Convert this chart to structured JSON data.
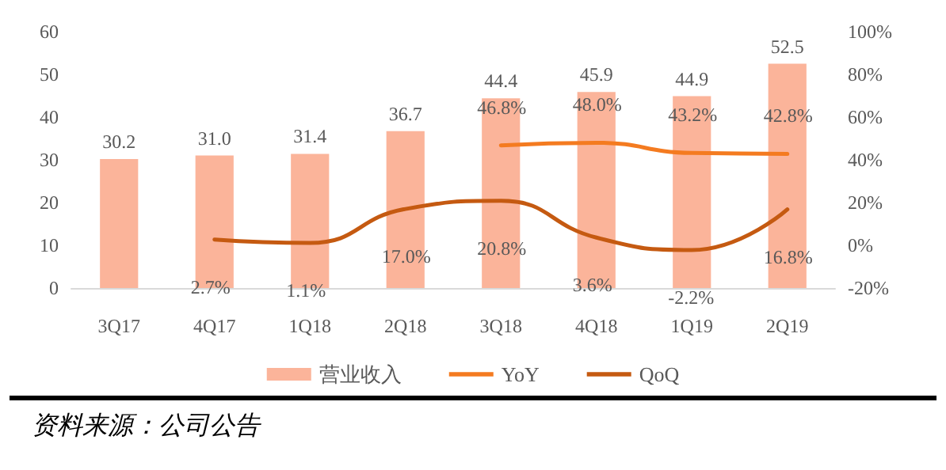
{
  "chart_data": {
    "type": "bar",
    "categories": [
      "3Q17",
      "4Q17",
      "1Q18",
      "2Q18",
      "3Q18",
      "4Q18",
      "1Q19",
      "2Q19"
    ],
    "series": [
      {
        "name": "营业收入",
        "color": "#fbb49a",
        "values": [
          30.2,
          31.0,
          31.4,
          36.7,
          44.4,
          45.9,
          44.9,
          52.5
        ],
        "value_labels": [
          "30.2",
          "31.0",
          "31.4",
          "36.7",
          "44.4",
          "45.9",
          "44.9",
          "52.5"
        ]
      },
      {
        "name": "YoY",
        "type": "line",
        "axis": "y2",
        "color": "#f47b20",
        "values": [
          null,
          null,
          null,
          null,
          46.8,
          48.0,
          43.2,
          42.8
        ],
        "value_labels": [
          null,
          null,
          null,
          null,
          "46.8%",
          "48.0%",
          "43.2%",
          "42.8%"
        ]
      },
      {
        "name": "QoQ",
        "type": "line",
        "axis": "y2",
        "color": "#c55a11",
        "values": [
          null,
          2.7,
          1.1,
          17.0,
          20.8,
          3.6,
          -2.2,
          16.8
        ],
        "value_labels": [
          null,
          "2.7%",
          "1.1%",
          "17.0%",
          "20.8%",
          "3.6%",
          "-2.2%",
          "16.8%"
        ]
      }
    ],
    "ylim": [
      0,
      60
    ],
    "yticks": [
      0,
      10,
      20,
      30,
      40,
      50,
      60
    ],
    "y2lim": [
      -20,
      100
    ],
    "y2ticks": [
      {
        "value": -20,
        "label": "-20%"
      },
      {
        "value": 0,
        "label": "0%"
      },
      {
        "value": 20,
        "label": "20%"
      },
      {
        "value": 40,
        "label": "40%"
      },
      {
        "value": 60,
        "label": "60%"
      },
      {
        "value": 80,
        "label": "80%"
      },
      {
        "value": 100,
        "label": "100%"
      }
    ],
    "grid": false,
    "legend": "bottom",
    "marker": "none",
    "annotations": [
      "资料来源：公司公告"
    ]
  }
}
